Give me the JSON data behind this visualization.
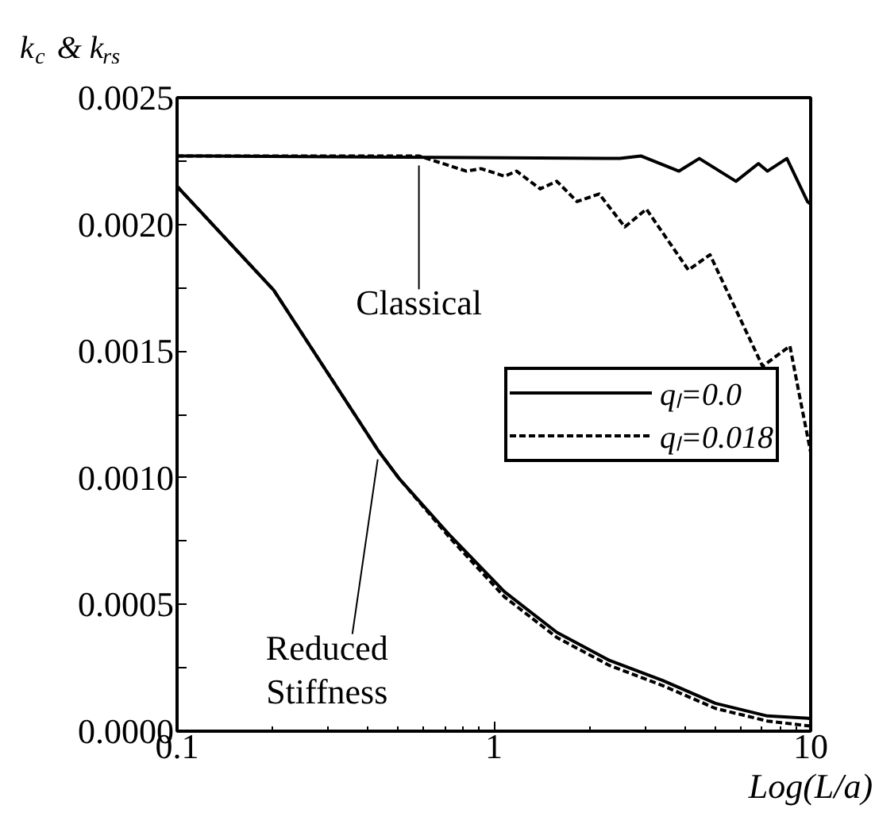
{
  "chart_data": {
    "type": "line",
    "ylabel": "k$_{c}$ & k$_{rs}$",
    "xlabel": "Log(L/a)",
    "log": "x",
    "xlim": [
      0.1,
      10
    ],
    "xticks": [
      0.1,
      1,
      10
    ],
    "ylim": [
      0,
      0.0025
    ],
    "yticks": [
      {
        "value": 0,
        "label": "0.0000"
      },
      {
        "value": 0.00025,
        "label": null
      },
      {
        "value": 0.0005,
        "label": "0.0005"
      },
      {
        "value": 0.00075,
        "label": null
      },
      {
        "value": 0.001,
        "label": "0.0010"
      },
      {
        "value": 0.00125,
        "label": null
      },
      {
        "value": 0.0015,
        "label": "0.0015"
      },
      {
        "value": 0.00175,
        "label": null
      },
      {
        "value": 0.002,
        "label": "0.0020"
      },
      {
        "value": 0.00225,
        "label": null
      },
      {
        "value": 0.0025,
        "label": "0.0025"
      }
    ],
    "grid": false,
    "legend": "right",
    "series": [
      {
        "name": "qₗ=0.0",
        "color": "#000000",
        "line_style": "solid",
        "x": [
          0.1,
          2.5,
          2.91,
          3.84,
          4.45,
          5.81,
          6.84,
          7.3,
          8.41,
          9.77,
          10
        ],
        "values": [
          0.00227,
          0.00226,
          0.00227,
          0.00221,
          0.00226,
          0.00217,
          0.00224,
          0.00221,
          0.00226,
          0.00209,
          0.00208
        ]
      },
      {
        "name": "qₗ=0.018",
        "color": "#000000",
        "line_style": "dashed",
        "x": [
          0.1,
          0.58,
          0.82,
          0.91,
          1.08,
          1.18,
          1.4,
          1.58,
          1.83,
          2.15,
          2.59,
          3.03,
          4.11,
          4.81,
          7.05,
          8.6,
          9.2,
          10
        ],
        "values": [
          0.00227,
          0.00227,
          0.00221,
          0.00222,
          0.00219,
          0.00221,
          0.00214,
          0.00217,
          0.00209,
          0.00212,
          0.00199,
          0.00206,
          0.00182,
          0.00188,
          0.00144,
          0.00152,
          0.00133,
          0.0011
        ]
      },
      {
        "color": "#000000",
        "line_style": "solid",
        "x": [
          0.1,
          0.202,
          0.43,
          0.5,
          0.73,
          1.08,
          1.58,
          2.31,
          3.41,
          5.0,
          7.3,
          10
        ],
        "values": [
          0.00215,
          0.00174,
          0.00111,
          0.001,
          0.00077,
          0.00055,
          0.00039,
          0.00028,
          0.0002,
          0.00011,
          6e-05,
          5e-05
        ]
      },
      {
        "color": "#000000",
        "line_style": "dashed",
        "x": [
          0.1,
          0.202,
          0.43,
          0.5,
          0.73,
          1.08,
          1.58,
          2.31,
          3.41,
          5.0,
          7.3,
          10
        ],
        "values": [
          0.00215,
          0.00174,
          0.00111,
          0.001,
          0.00076,
          0.00053,
          0.00037,
          0.00026,
          0.00018,
          9e-05,
          4e-05,
          2e-05
        ]
      }
    ],
    "annotations": [
      {
        "text": "Classical",
        "x": 0.58,
        "y": 0.00227
      },
      {
        "text": "Reduced Stiffness",
        "x": 0.43,
        "y": 0.00111
      }
    ]
  }
}
